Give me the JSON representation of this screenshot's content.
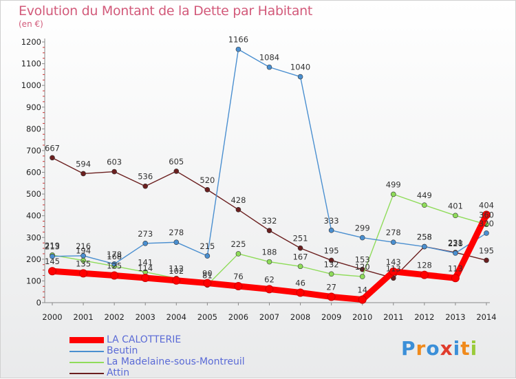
{
  "title": "Evolution du Montant de la Dette par Habitant",
  "unit": "(en €)",
  "logo_text": "Proxiti",
  "chart_data": {
    "type": "line",
    "title": "Evolution du Montant de la Dette par Habitant",
    "ylabel": "(en €)",
    "xlabel": "",
    "x": [
      "2000",
      "2001",
      "2002",
      "2003",
      "2004",
      "2005",
      "2006",
      "2007",
      "2008",
      "2009",
      "2010",
      "2011",
      "2012",
      "2013",
      "2014"
    ],
    "ylim": [
      0,
      1200
    ],
    "yticks": [
      "0",
      "100",
      "200",
      "300",
      "400",
      "500",
      "600",
      "700",
      "800",
      "900",
      "1000",
      "1100",
      "1200"
    ],
    "grid": false,
    "legend": "bottom-left",
    "series": [
      {
        "name": "LA CALOTTERIE",
        "color": "#ff0000",
        "values": [
          145,
          135,
          125,
          114,
          102,
          90,
          76,
          62,
          46,
          27,
          14,
          143,
          128,
          113,
          404
        ],
        "labels": [
          "145",
          "135",
          "125",
          "114",
          "102",
          "90",
          "76",
          "62",
          "46",
          "27",
          "14",
          "143",
          "128",
          "113",
          "404"
        ]
      },
      {
        "name": "Beutin",
        "color": "#4a8fd0",
        "values": [
          213,
          216,
          178,
          273,
          278,
          215,
          1166,
          1084,
          1040,
          333,
          299,
          278,
          258,
          228,
          320
        ],
        "labels": [
          "213",
          "216",
          "178",
          "273",
          "278",
          "215",
          "1166",
          "1084",
          "1040",
          "333",
          "299",
          "278",
          "258",
          "228",
          "320"
        ]
      },
      {
        "name": "La Madelaine-sous-Montreuil",
        "color": "#8fdc5a",
        "values": [
          219,
          194,
          168,
          141,
          112,
          81,
          225,
          188,
          167,
          132,
          120,
          499,
          449,
          401,
          360
        ],
        "labels": [
          "219",
          "194",
          "168",
          "141",
          "112",
          "81",
          "225",
          "188",
          "167",
          "132",
          "120",
          "499",
          "449",
          "401",
          "360"
        ]
      },
      {
        "name": "Attin",
        "color": "#6b1f1f",
        "values": [
          667,
          594,
          603,
          536,
          605,
          520,
          428,
          332,
          251,
          195,
          153,
          113,
          258,
          231,
          195
        ],
        "labels": [
          "667",
          "594",
          "603",
          "536",
          "605",
          "520",
          "428",
          "332",
          "251",
          "195",
          "153",
          "113",
          "258",
          "231",
          "195"
        ]
      }
    ]
  }
}
